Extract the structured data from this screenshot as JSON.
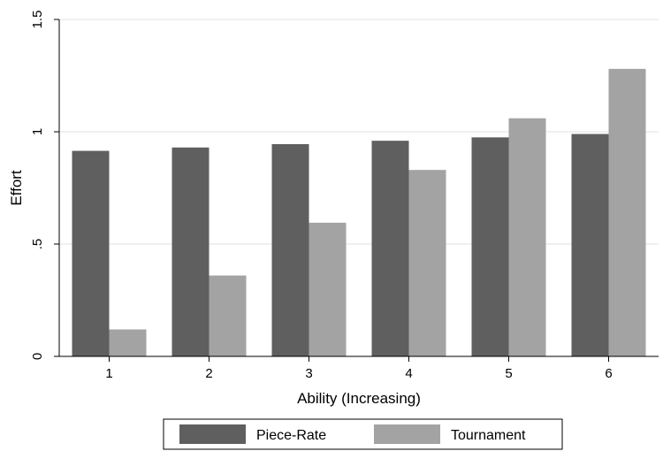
{
  "chart_data": {
    "type": "bar",
    "categories": [
      "1",
      "2",
      "3",
      "4",
      "5",
      "6"
    ],
    "series": [
      {
        "name": "Piece-Rate",
        "values": [
          0.915,
          0.93,
          0.945,
          0.96,
          0.975,
          0.99
        ],
        "color": "#5f5f5f"
      },
      {
        "name": "Tournament",
        "values": [
          0.12,
          0.36,
          0.595,
          0.83,
          1.06,
          1.28
        ],
        "color": "#a3a3a3"
      }
    ],
    "xlabel": "Ability (Increasing)",
    "ylabel": "Effort",
    "ylim": [
      0,
      1.5
    ],
    "yticks": [
      {
        "value": 0,
        "label": "0"
      },
      {
        "value": 0.5,
        "label": ".5"
      },
      {
        "value": 1,
        "label": "1"
      },
      {
        "value": 1.5,
        "label": "1.5"
      }
    ],
    "grid": true,
    "legend_position": "bottom"
  }
}
